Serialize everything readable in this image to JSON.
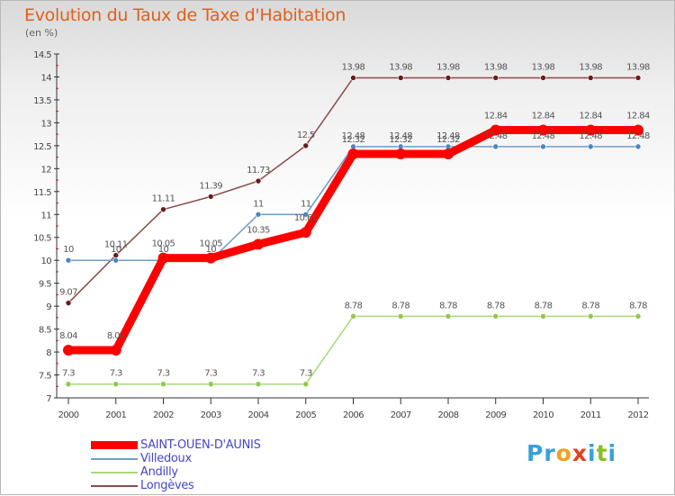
{
  "title": "Evolution du Taux de Taxe d'Habitation",
  "unit_label": "(en %)",
  "logo": {
    "text": "Proxiti",
    "letters": [
      {
        "ch": "P",
        "color": "#3aa0d8"
      },
      {
        "ch": "r",
        "color": "#3aa0d8"
      },
      {
        "ch": "o",
        "color": "#f0a020"
      },
      {
        "ch": "x",
        "color": "#e04020"
      },
      {
        "ch": "i",
        "color": "#3aa0d8"
      },
      {
        "ch": "t",
        "color": "#8ac020"
      },
      {
        "ch": "i",
        "color": "#3aa0d8"
      }
    ]
  },
  "chart_data": {
    "type": "line",
    "title": "Evolution du Taux de Taxe d'Habitation",
    "ylabel": "(en %)",
    "x": [
      "2000",
      "2001",
      "2002",
      "2003",
      "2004",
      "2005",
      "2006",
      "2007",
      "2008",
      "2009",
      "2010",
      "2011",
      "2012"
    ],
    "ylim": [
      7,
      14.5
    ],
    "yticks": [
      "7",
      "7.5",
      "8",
      "8.5",
      "9",
      "9.5",
      "10",
      "10.5",
      "11",
      "11.5",
      "12",
      "12.5",
      "13",
      "13.5",
      "14",
      "14.5"
    ],
    "grid": false,
    "legend_position": "bottom-left",
    "series": [
      {
        "name": "SAINT-OUEN-D'AUNIS",
        "color": "#ff0000",
        "width": 9,
        "marker_color": "#ff0000",
        "values": [
          8.04,
          8.04,
          10.05,
          10.05,
          10.35,
          10.61,
          12.32,
          12.32,
          12.32,
          12.84,
          12.84,
          12.84,
          12.84
        ],
        "labels": [
          "8.04",
          "8.04",
          "10.05",
          "10.05",
          "10.35",
          "10.61",
          "12.32",
          "12.32",
          "12.32",
          "12.84",
          "12.84",
          "12.84",
          "12.84"
        ]
      },
      {
        "name": "Villedoux",
        "color": "#6f9cc8",
        "width": 1.5,
        "marker_color": "#4a86c0",
        "values": [
          10,
          10,
          10,
          10,
          11,
          11,
          12.48,
          12.48,
          12.48,
          12.48,
          12.48,
          12.48,
          12.48
        ],
        "labels": [
          "10",
          "10",
          "10",
          "10",
          "11",
          "11",
          "12.48",
          "12.48",
          "12.48",
          "12.48",
          "12.48",
          "12.48",
          "12.48"
        ]
      },
      {
        "name": "Andilly",
        "color": "#a6d87a",
        "width": 1.5,
        "marker_color": "#8ccc44",
        "values": [
          7.3,
          7.3,
          7.3,
          7.3,
          7.3,
          7.3,
          8.78,
          8.78,
          8.78,
          8.78,
          8.78,
          8.78,
          8.78
        ],
        "labels": [
          "7.3",
          "7.3",
          "7.3",
          "7.3",
          "7.3",
          "7.3",
          "8.78",
          "8.78",
          "8.78",
          "8.78",
          "8.78",
          "8.78",
          "8.78"
        ]
      },
      {
        "name": "Longèves",
        "color": "#8a4a4a",
        "width": 1.5,
        "marker_color": "#6a1a1a",
        "values": [
          9.07,
          10.11,
          11.11,
          11.39,
          11.73,
          12.5,
          13.98,
          13.98,
          13.98,
          13.98,
          13.98,
          13.98,
          13.98
        ],
        "labels": [
          "9.07",
          "10.11",
          "11.11",
          "11.39",
          "11.73",
          "12.5",
          "13.98",
          "13.98",
          "13.98",
          "13.98",
          "13.98",
          "13.98",
          "13.98"
        ]
      }
    ]
  }
}
